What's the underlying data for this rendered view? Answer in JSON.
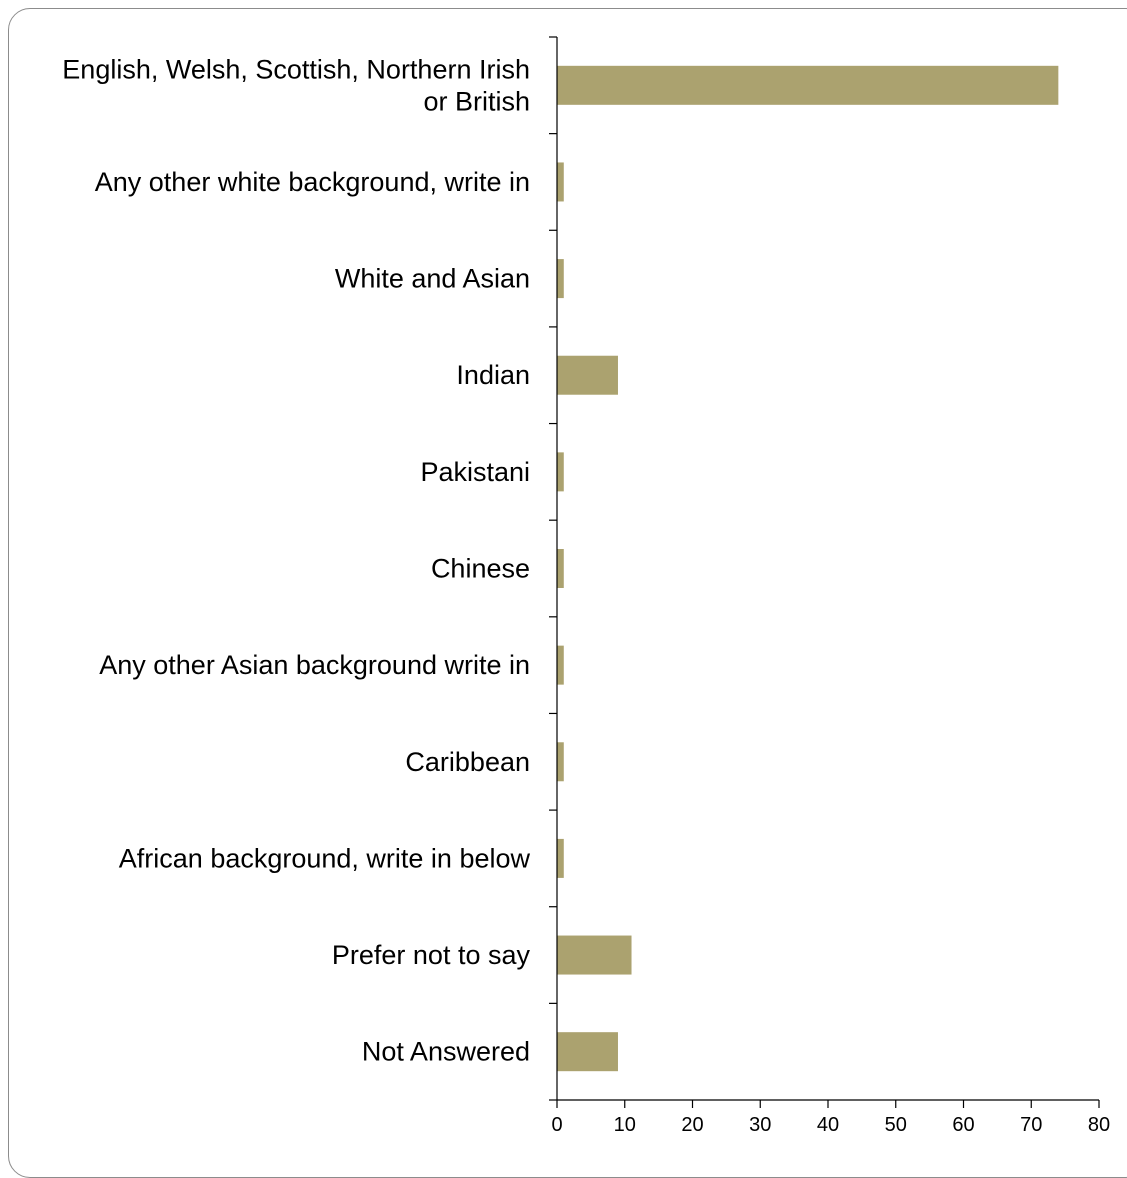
{
  "chart_data": {
    "type": "bar",
    "orientation": "horizontal",
    "categories": [
      [
        "English, Welsh, Scottish, Northern Irish",
        "or British"
      ],
      [
        "Any other white background, write in"
      ],
      [
        "White and Asian"
      ],
      [
        "Indian"
      ],
      [
        "Pakistani"
      ],
      [
        "Chinese"
      ],
      [
        "Any other Asian background write in"
      ],
      [
        "Caribbean"
      ],
      [
        "African background, write in below"
      ],
      [
        "Prefer not to say"
      ],
      [
        "Not Answered"
      ]
    ],
    "values": [
      74,
      1,
      1,
      9,
      1,
      1,
      1,
      1,
      1,
      11,
      9
    ],
    "xlim": [
      0,
      80
    ],
    "xticks": [
      "0",
      "10",
      "20",
      "30",
      "40",
      "50",
      "60",
      "70",
      "80"
    ],
    "title": "",
    "xlabel": "",
    "ylabel": "",
    "bar_color": "#aba26f",
    "grid": false,
    "legend": "none"
  }
}
